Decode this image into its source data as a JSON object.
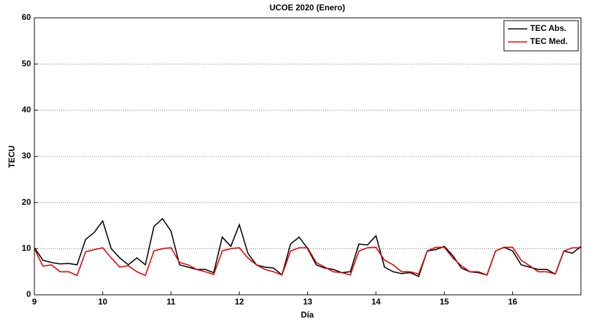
{
  "chart_data": {
    "type": "line",
    "title": "UCOE 2020 (Enero)",
    "x_label": "Día",
    "y_label": "TECU",
    "x": [
      9,
      9.125,
      9.25,
      9.375,
      9.5,
      9.625,
      9.75,
      9.875,
      10,
      10.125,
      10.25,
      10.375,
      10.5,
      10.625,
      10.75,
      10.875,
      11,
      11.125,
      11.25,
      11.375,
      11.5,
      11.625,
      11.75,
      11.875,
      12,
      12.125,
      12.25,
      12.375,
      12.5,
      12.625,
      12.75,
      12.875,
      13,
      13.125,
      13.25,
      13.375,
      13.5,
      13.625,
      13.75,
      13.875,
      14,
      14.125,
      14.25,
      14.375,
      14.5,
      14.625,
      14.75,
      14.875,
      15,
      15.125,
      15.25,
      15.375,
      15.5,
      15.625,
      15.75,
      15.875,
      16,
      16.125,
      16.25,
      16.375,
      16.5,
      16.625,
      16.75,
      16.875,
      17
    ],
    "series": [
      {
        "name": "TEC Abs.",
        "color": "#000000",
        "values": [
          10.2,
          7.5,
          7,
          6.7,
          6.8,
          6.5,
          12,
          13.5,
          16,
          10,
          8,
          6.5,
          8,
          6.5,
          14.8,
          16.5,
          13.8,
          6.5,
          6,
          5.5,
          5.5,
          4.8,
          12.5,
          10.5,
          15.2,
          9,
          6.5,
          6,
          5.8,
          4.3,
          11,
          12.5,
          10,
          6.5,
          5.8,
          5.5,
          4.8,
          5,
          11,
          10.8,
          12.8,
          6,
          5,
          4.6,
          4.8,
          4,
          9.5,
          9.8,
          10.5,
          8.5,
          5.8,
          5,
          4.8,
          4.3,
          9.5,
          10.3,
          9.5,
          6.5,
          6,
          5.5,
          5.5,
          4.5,
          9.5,
          9,
          10.5
        ]
      },
      {
        "name": "TEC Med.",
        "color": "#e00000",
        "values": [
          10,
          6.2,
          6.5,
          5,
          5,
          4.2,
          9.3,
          9.8,
          10.2,
          8,
          6,
          6.3,
          5,
          4.2,
          9.5,
          10,
          10.2,
          7,
          6.5,
          5.5,
          5,
          4.4,
          9.5,
          10,
          10.2,
          8,
          6.5,
          5.5,
          5,
          4.3,
          9.5,
          10.2,
          10.2,
          7,
          6,
          5,
          4.8,
          4.3,
          9.5,
          10.2,
          10.3,
          7.5,
          6.5,
          5,
          5,
          4.5,
          9.5,
          10.3,
          10.3,
          8,
          6.3,
          5,
          5,
          4.3,
          9.5,
          10.3,
          10.3,
          7.5,
          6.3,
          5,
          5,
          4.5,
          9.5,
          10.2,
          10.2
        ]
      }
    ],
    "xlim": [
      9,
      17
    ],
    "xticks": [
      9,
      10,
      11,
      12,
      13,
      14,
      15,
      16
    ],
    "ylim": [
      0,
      60
    ],
    "yticks": [
      0,
      10,
      20,
      30,
      40,
      50,
      60
    ],
    "grid": true,
    "legend": "top-right"
  }
}
